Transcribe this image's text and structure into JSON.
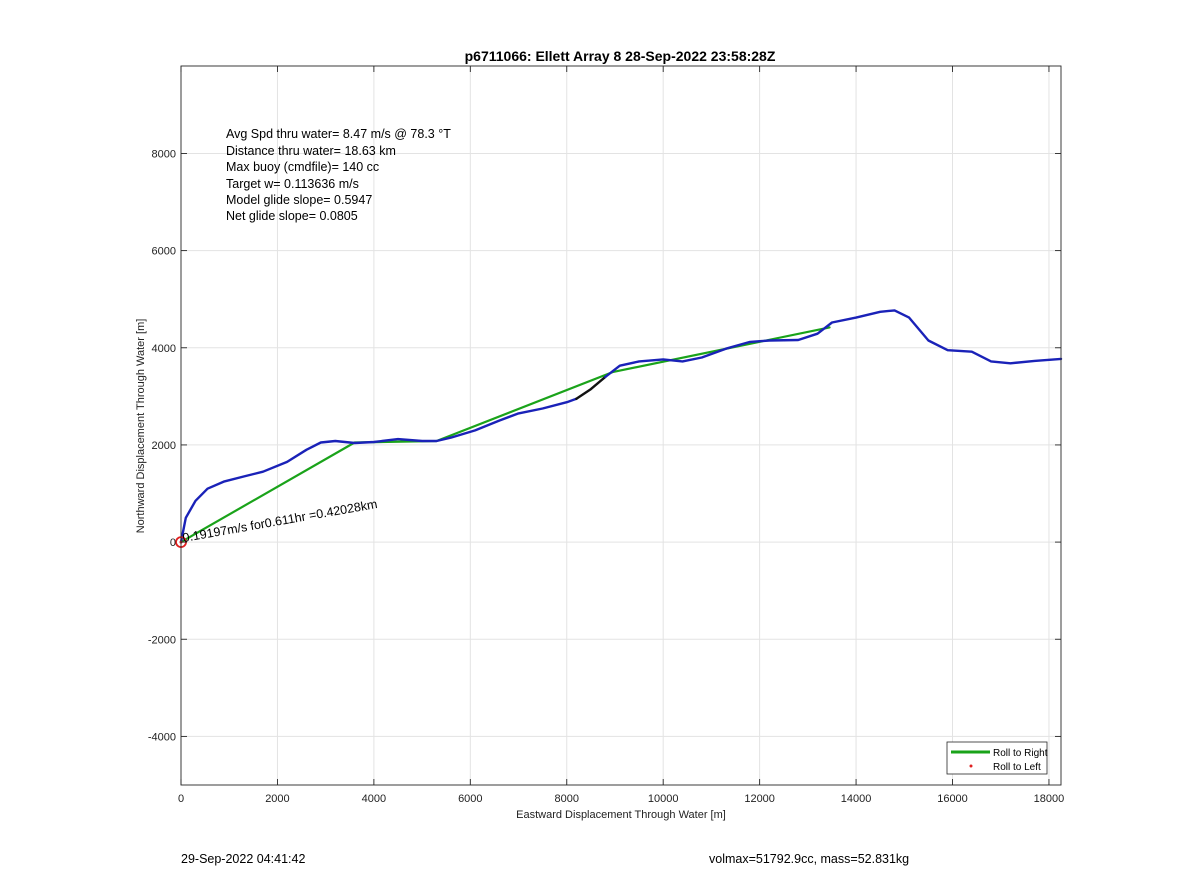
{
  "chart_data": {
    "type": "line",
    "title": "p6711066: Ellett Array 8 28-Sep-2022 23:58:28Z",
    "xlabel": "Eastward Displacement Through Water [m]",
    "ylabel": "Northward Displacement Through Water [m]",
    "xlim": [
      0,
      18250
    ],
    "ylim": [
      -5000,
      9800
    ],
    "xticks": [
      0,
      2000,
      4000,
      6000,
      8000,
      10000,
      12000,
      14000,
      16000,
      18000
    ],
    "yticks": [
      -4000,
      -2000,
      0,
      2000,
      4000,
      6000,
      8000
    ],
    "grid": true,
    "legend_position": "bottom-right",
    "info_lines": [
      "Avg Spd thru water=  8.47 m/s @  78.3 °T",
      "Distance thru water= 18.63 km",
      "Max buoy (cmdfile)= 140 cc",
      "Target w= 0.113636 m/s",
      "Model glide slope= 0.5947",
      "Net glide slope= 0.0805"
    ],
    "annotation": {
      "text": "0.19197m/s for0.611hr =0.42028km",
      "x": 50,
      "y": 0,
      "angle_deg": -10
    },
    "series": [
      {
        "name": "Roll to Right",
        "color": "#1aa31a",
        "x": [
          0,
          3600,
          5300,
          8950,
          13450
        ],
        "y": [
          0,
          2050,
          2080,
          3500,
          4420
        ]
      },
      {
        "name": "Roll to Left",
        "color": "#e02020",
        "x": [
          0
        ],
        "y": [
          0
        ]
      }
    ],
    "track": {
      "color": "#1a22b8",
      "x": [
        0,
        100,
        300,
        550,
        900,
        1300,
        1700,
        2200,
        2600,
        2900,
        3200,
        3600,
        4000,
        4500,
        5000,
        5300,
        5600,
        6100,
        6600,
        7000,
        7500,
        8000,
        8200
      ],
      "y": [
        0,
        500,
        850,
        1100,
        1250,
        1350,
        1450,
        1650,
        1900,
        2050,
        2080,
        2040,
        2060,
        2120,
        2080,
        2080,
        2150,
        2300,
        2500,
        2650,
        2750,
        2880,
        2950
      ]
    },
    "track_black": {
      "color": "#111111",
      "x": [
        8200,
        8500,
        8800
      ],
      "y": [
        2950,
        3150,
        3400
      ]
    },
    "track_blue_2": {
      "color": "#1a22b8",
      "x": [
        8800,
        9100,
        9500,
        10000,
        10400,
        10800,
        11300,
        11800,
        12200,
        12800,
        13200,
        13500,
        14000,
        14500,
        14800,
        15100,
        15500,
        15900,
        16400,
        16800,
        17200,
        17700,
        18250
      ],
      "y": [
        3400,
        3630,
        3720,
        3760,
        3720,
        3800,
        3980,
        4120,
        4150,
        4160,
        4290,
        4520,
        4620,
        4740,
        4770,
        4620,
        4150,
        3950,
        3920,
        3720,
        3680,
        3730,
        3770
      ]
    },
    "start_marker": {
      "x": 0,
      "y": 0,
      "color": "#e02020"
    }
  },
  "footer": {
    "timestamp": "29-Sep-2022 04:41:42",
    "summary": "volmax=51792.9cc, mass=52.831kg"
  }
}
